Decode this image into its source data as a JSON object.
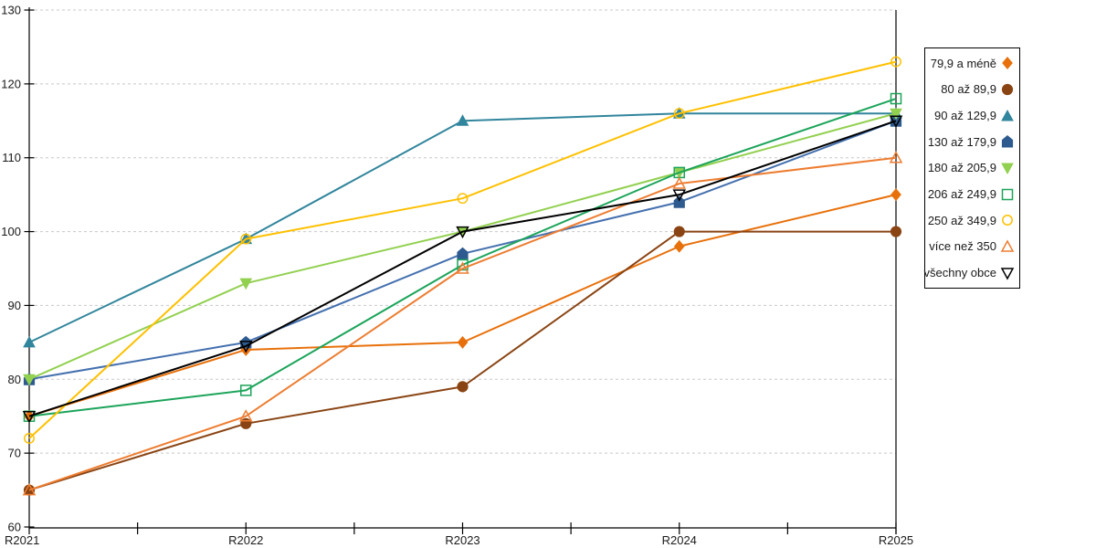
{
  "chart_data": {
    "type": "line",
    "title": "",
    "xlabel": "",
    "ylabel": "",
    "categories": [
      "R2021",
      "R2022",
      "R2023",
      "R2024",
      "R2025"
    ],
    "y_axis": {
      "min": 60,
      "max": 130,
      "step": 10,
      "tick_labels": [
        "60",
        "70",
        "80",
        "90",
        "100",
        "110",
        "120",
        "130"
      ]
    },
    "grid": "horizontal dashed gridlines at every 10 units",
    "legend_position": "right",
    "series": [
      {
        "name": "79,9 a méně",
        "marker": "diamond",
        "marker_fill": "filled",
        "color": "#E8700A",
        "marker_color": "#E8700A",
        "values": [
          75,
          84,
          85,
          98,
          105
        ]
      },
      {
        "name": "80 až 89,9",
        "marker": "circle",
        "marker_fill": "filled",
        "color": "#8A4413",
        "marker_color": "#8A4413",
        "values": [
          65,
          74,
          79,
          100,
          100
        ]
      },
      {
        "name": "90 až 129,9",
        "marker": "triangle-up",
        "marker_fill": "filled",
        "color": "#31859C",
        "marker_color": "#31859C",
        "values": [
          85,
          99,
          115,
          116,
          116
        ]
      },
      {
        "name": "130 až 179,9",
        "marker": "pentagon",
        "marker_fill": "filled",
        "color": "#4470AF",
        "marker_color": "#2E5B8F",
        "values": [
          80,
          85,
          97,
          104,
          115
        ]
      },
      {
        "name": "180 až 205,9",
        "marker": "triangle-down",
        "marker_fill": "filled",
        "color": "#92D050",
        "marker_color": "#92D050",
        "values": [
          80,
          93,
          100,
          108,
          116
        ]
      },
      {
        "name": "206 až 249,9",
        "marker": "square",
        "marker_fill": "open",
        "color": "#1CA45A",
        "marker_color": "#1CA45A",
        "values": [
          75,
          78.5,
          95.5,
          108,
          118
        ]
      },
      {
        "name": "250 až 349,9",
        "marker": "circle",
        "marker_fill": "open",
        "color": "#FFC000",
        "marker_color": "#FFC000",
        "values": [
          72,
          99,
          104.5,
          116,
          123
        ]
      },
      {
        "name": "více než 350",
        "marker": "triangle-up",
        "marker_fill": "open",
        "color": "#ED7D31",
        "marker_color": "#ED7D31",
        "values": [
          65,
          75,
          95,
          106.5,
          110
        ]
      },
      {
        "name": "všechny obce",
        "marker": "triangle-down",
        "marker_fill": "open",
        "color": "#000000",
        "marker_color": "#000000",
        "values": [
          75,
          84.5,
          100,
          105,
          115
        ]
      }
    ]
  },
  "colors": {
    "background": "#FFFFFF",
    "grid": "#C8C8C8",
    "axis": "#000000",
    "text": "#1A1A1A",
    "legend_border": "#000000"
  }
}
